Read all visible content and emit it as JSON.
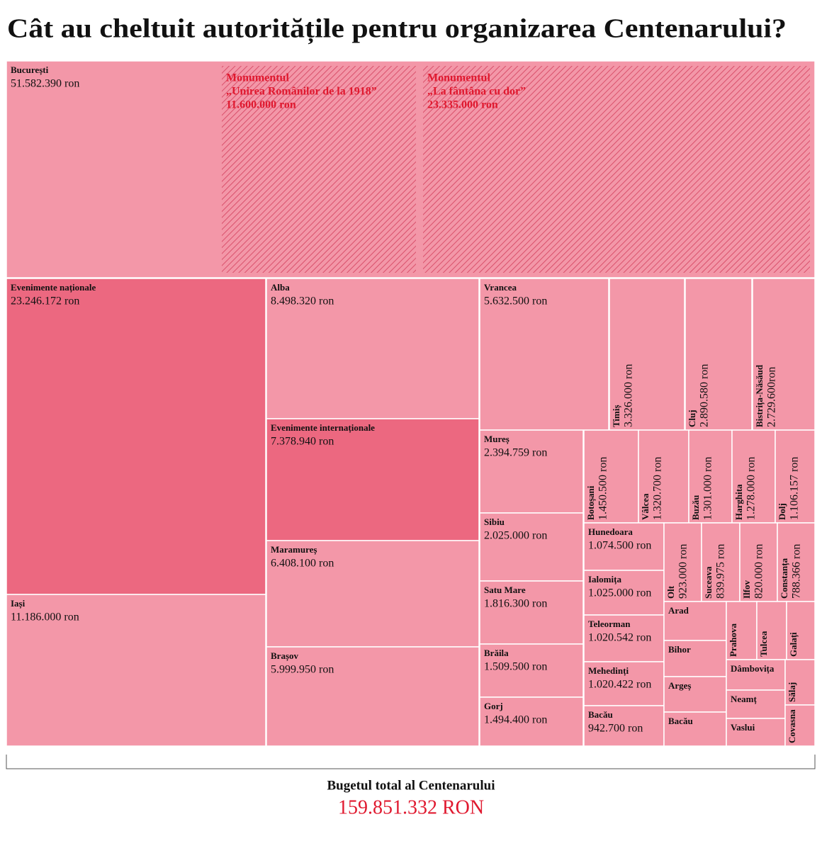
{
  "chart_data": {
    "type": "treemap",
    "title": "Cât au cheltuit autoritățile pentru organizarea Centenarului?",
    "items": [
      {
        "name": "București",
        "value": 51582390,
        "value_label": "51.582.390 ron",
        "color": "#f397a8"
      },
      {
        "name": "Monumentul",
        "detail": "„Unirea Românilor de la 1918”",
        "value": 11600000,
        "value_label": "11.600.000 ron",
        "color": "#e0192f",
        "hatched": true
      },
      {
        "name": "Monumentul",
        "detail": "„La fântâna cu dor”",
        "value": 23335000,
        "value_label": "23.335.000 ron",
        "color": "#e0192f",
        "hatched": true
      },
      {
        "name": "Evenimente naționale",
        "value": 23246172,
        "value_label": "23.246.172 ron",
        "color": "#ec6880"
      },
      {
        "name": "Iași",
        "value": 11186000,
        "value_label": "11.186.000 ron",
        "color": "#f397a8"
      },
      {
        "name": "Alba",
        "value": 8498320,
        "value_label": "8.498.320 ron",
        "color": "#f397a8"
      },
      {
        "name": "Evenimente internaționale",
        "value": 7378940,
        "value_label": "7.378.940 ron",
        "color": "#ec6880"
      },
      {
        "name": "Maramureș",
        "value": 6408100,
        "value_label": "6.408.100 ron",
        "color": "#f397a8"
      },
      {
        "name": "Brașov",
        "value": 5999950,
        "value_label": "5.999.950 ron",
        "color": "#f397a8"
      },
      {
        "name": "Vrancea",
        "value": 5632500,
        "value_label": "5.632.500 ron",
        "color": "#f397a8"
      },
      {
        "name": "Timiș",
        "value": 3326000,
        "value_label": "3.326.000 ron",
        "color": "#f397a8"
      },
      {
        "name": "Cluj",
        "value": 2890580,
        "value_label": "2.890.580 ron",
        "color": "#f397a8"
      },
      {
        "name": "Bistrița-Năsăud",
        "value": 2729600,
        "value_label": "2.729.600ron",
        "color": "#f397a8"
      },
      {
        "name": "Mureș",
        "value": 2394759,
        "value_label": "2.394.759 ron",
        "color": "#f397a8"
      },
      {
        "name": "Sibiu",
        "value": 2025000,
        "value_label": "2.025.000 ron",
        "color": "#f397a8"
      },
      {
        "name": "Satu Mare",
        "value": 1816300,
        "value_label": "1.816.300 ron",
        "color": "#f397a8"
      },
      {
        "name": "Brăila",
        "value": 1509500,
        "value_label": "1.509.500 ron",
        "color": "#f397a8"
      },
      {
        "name": "Gorj",
        "value": 1494400,
        "value_label": "1.494.400 ron",
        "color": "#f397a8"
      },
      {
        "name": "Botoșani",
        "value": 1450500,
        "value_label": "1.450.500 ron",
        "color": "#f397a8"
      },
      {
        "name": "Vâlcea",
        "value": 1320700,
        "value_label": "1.320.700 ron",
        "color": "#f397a8"
      },
      {
        "name": "Buzău",
        "value": 1301000,
        "value_label": "1.301.000 ron",
        "color": "#f397a8"
      },
      {
        "name": "Harghita",
        "value": 1278000,
        "value_label": "1.278.000 ron",
        "color": "#f397a8"
      },
      {
        "name": "Dolj",
        "value": 1106157,
        "value_label": "1.106.157 ron",
        "color": "#f397a8"
      },
      {
        "name": "Hunedoara",
        "value": 1074500,
        "value_label": "1.074.500 ron",
        "color": "#f397a8"
      },
      {
        "name": "Ialomița",
        "value": 1025000,
        "value_label": "1.025.000 ron",
        "color": "#f397a8"
      },
      {
        "name": "Teleorman",
        "value": 1020542,
        "value_label": "1.020.542 ron",
        "color": "#f397a8"
      },
      {
        "name": "Mehedinți",
        "value": 1020422,
        "value_label": "1.020.422 ron",
        "color": "#f397a8"
      },
      {
        "name": "Bacău",
        "value": 942700,
        "value_label": "942.700 ron",
        "color": "#f397a8"
      },
      {
        "name": "Olt",
        "value": 923000,
        "value_label": "923.000 ron",
        "color": "#f397a8"
      },
      {
        "name": "Suceava",
        "value": 839975,
        "value_label": "839.975 ron",
        "color": "#f397a8"
      },
      {
        "name": "Ilfov",
        "value": 820000,
        "value_label": "820.000 ron",
        "color": "#f397a8"
      },
      {
        "name": "Constanța",
        "value": 788366,
        "value_label": "788.366 ron",
        "color": "#f397a8"
      },
      {
        "name": "Arad",
        "color": "#f397a8"
      },
      {
        "name": "Bihor",
        "color": "#f397a8"
      },
      {
        "name": "Argeș",
        "color": "#f397a8"
      },
      {
        "name": "Bacău",
        "color": "#f397a8"
      },
      {
        "name": "Prahova",
        "color": "#f397a8"
      },
      {
        "name": "Tulcea",
        "color": "#f397a8"
      },
      {
        "name": "Galați",
        "color": "#f397a8"
      },
      {
        "name": "Dâmbovița",
        "color": "#f397a8"
      },
      {
        "name": "Neamț",
        "color": "#f397a8"
      },
      {
        "name": "Vaslui",
        "color": "#f397a8"
      },
      {
        "name": "Sălaj",
        "color": "#f397a8"
      },
      {
        "name": "Covasna",
        "color": "#f397a8"
      }
    ],
    "total_title": "Bugetul total al Centenarului",
    "total": 159851332,
    "total_label": "159.851.332 RON",
    "total_color": "#e0192f"
  }
}
